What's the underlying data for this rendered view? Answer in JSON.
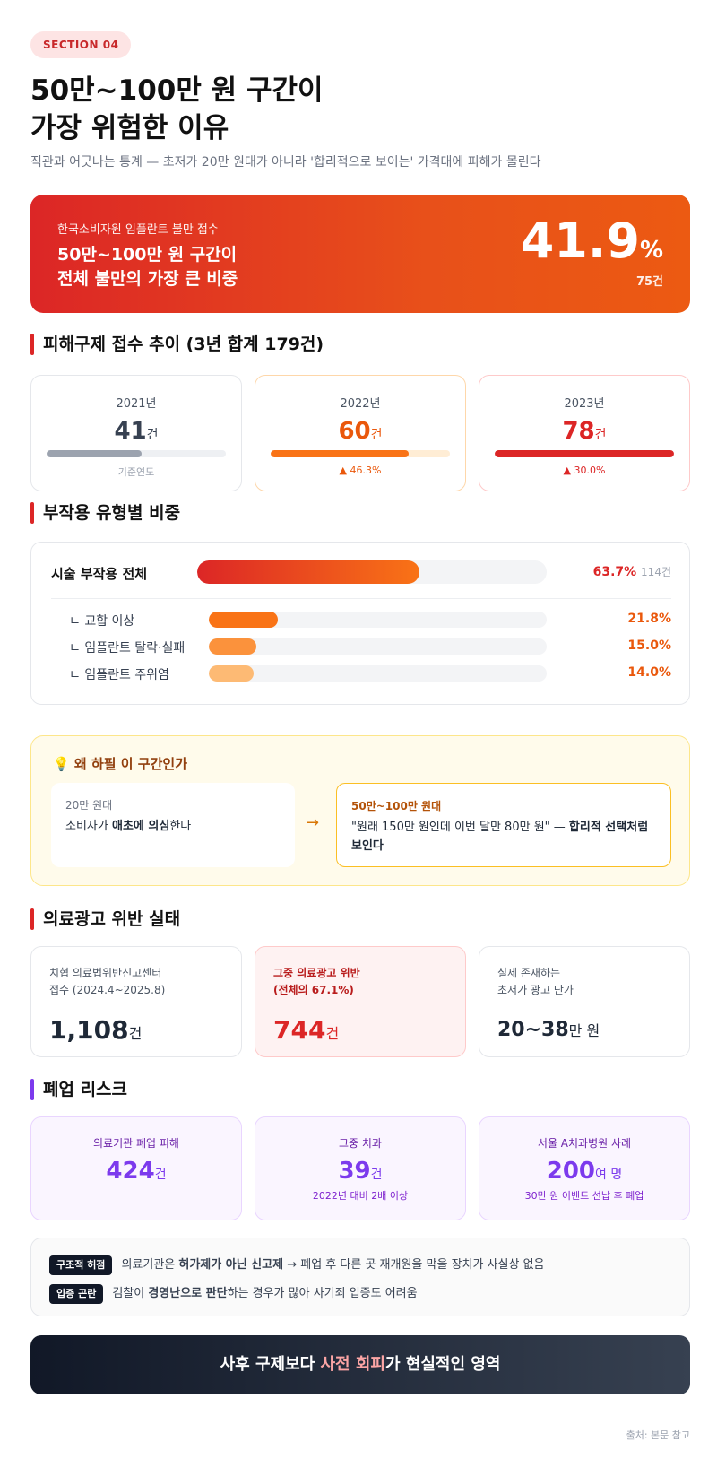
{
  "badge": "SECTION 04",
  "title_line1": "50만~100만 원 구간이",
  "title_line2": "가장 위험한 이유",
  "subtitle": "직관과 어긋나는 통계 — 초저가 20만 원대가 아니라 '합리적으로 보이는' 가격대에 피해가 몰린다",
  "hero": {
    "label": "한국소비자원 임플란트 불만 접수",
    "line1": "50만~100만 원 구간이",
    "line2": "전체 불만의 가장 큰 비중",
    "pct": "41.9",
    "pct_unit": "%",
    "count": "75건"
  },
  "trend": {
    "heading": "피해구제 접수 추이 (3년 합계 179건)",
    "cards": [
      {
        "year": "2021년",
        "value": "41",
        "unit": "건",
        "note": "기준연도",
        "fill": 0.53,
        "color": "#9ca3af",
        "num_color": "#374151"
      },
      {
        "year": "2022년",
        "value": "60",
        "unit": "건",
        "note": "▲ 46.3%",
        "fill": 0.77,
        "color": "#f97316",
        "num_color": "#ea580c"
      },
      {
        "year": "2023년",
        "value": "78",
        "unit": "건",
        "note": "▲ 30.0%",
        "fill": 1.0,
        "color": "#dc2626",
        "num_color": "#dc2626"
      }
    ]
  },
  "side_effects": {
    "heading": "부작용 유형별 비중",
    "main": {
      "label": "시술 부작용 전체",
      "pct": "63.7%",
      "count": "114건",
      "value": 63.7
    },
    "sub": [
      {
        "label": "ㄴ 교합 이상",
        "pct": "21.8%",
        "value": 21.8
      },
      {
        "label": "ㄴ 임플란트 탈락·실패",
        "pct": "15.0%",
        "value": 15.0
      },
      {
        "label": "ㄴ 임플란트 주위염",
        "pct": "14.0%",
        "value": 14.0
      }
    ]
  },
  "why": {
    "title": "왜 하필 이 구간인가",
    "left_title": "20만 원대",
    "left_pre": "소비자가 ",
    "left_bold": "애초에 의심",
    "left_post": "한다",
    "right_title": "50만~100만 원대",
    "right_pre": "\"원래 150만 원인데 이번 달만 80만 원\" — ",
    "right_bold": "합리적 선택처럼 보인다"
  },
  "ads": {
    "heading": "의료광고 위반 실태",
    "cards": [
      {
        "title1": "치협 의료법위반신고센터",
        "title2": "접수 (2024.4~2025.8)",
        "value": "1,108",
        "unit": "건"
      },
      {
        "title1": "그중 의료광고 위반",
        "title2": "(전체의 67.1%)",
        "value": "744",
        "unit": "건"
      },
      {
        "title1": "실제 존재하는",
        "title2": "초저가 광고 단가",
        "value": "20~38",
        "unit": "만 원"
      }
    ]
  },
  "closure": {
    "heading": "폐업 리스크",
    "cards": [
      {
        "title": "의료기관 폐업 피해",
        "value": "424",
        "unit": "건",
        "sub": ""
      },
      {
        "title": "그중 치과",
        "value": "39",
        "unit": "건",
        "sub": "2022년 대비 2배 이상"
      },
      {
        "title": "서울 A치과병원 사례",
        "value": "200",
        "unit": "여 명",
        "sub": "30만 원 이벤트 선납 후 폐업"
      }
    ]
  },
  "notes": [
    {
      "tag": "구조적 허점",
      "pre": "의료기관은 ",
      "bold": "허가제가 아닌 신고제",
      "post": " → 폐업 후 다른 곳 재개원을 막을 장치가 사실상 없음"
    },
    {
      "tag": "입증 곤란",
      "pre": "검찰이 ",
      "bold": "경영난으로 판단",
      "post": "하는 경우가 많아 사기죄 입증도 어려움"
    }
  ],
  "cta": {
    "pre": "사후 구제보다 ",
    "hl": "사전 회피",
    "post": "가 현실적인 영역"
  },
  "source": "출처: 본문 참고"
}
